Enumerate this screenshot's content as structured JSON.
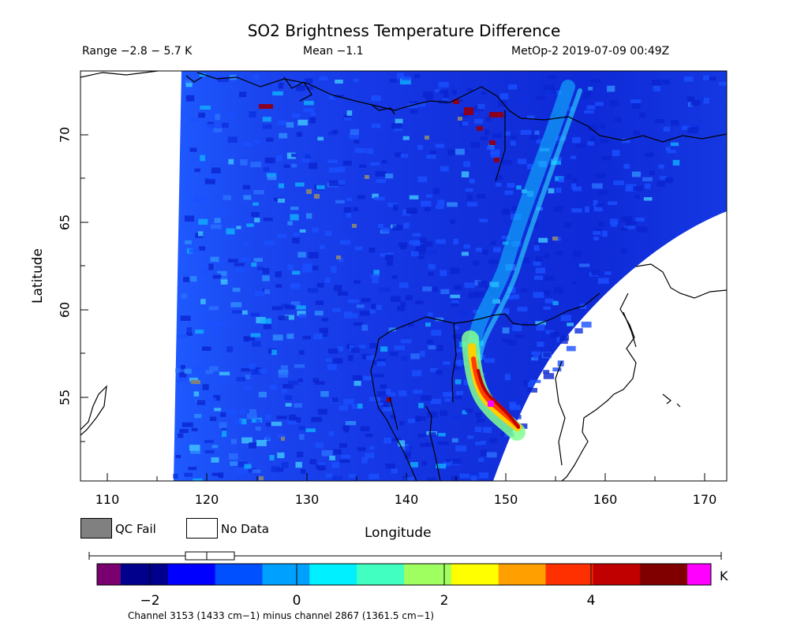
{
  "header": {
    "title": "SO2 Brightness Temperature Difference",
    "range": "Range −2.8 − 5.7 K",
    "mean": "Mean −1.1",
    "satellite_time": "MetOp-2 2019-07-09 00:49Z"
  },
  "axes": {
    "xlabel": "Longitude",
    "ylabel": "Latitude",
    "xticks": [
      "110",
      "120",
      "130",
      "140",
      "150",
      "160",
      "170"
    ],
    "yticks": [
      "70",
      "65",
      "60",
      "55"
    ]
  },
  "legend": {
    "qc_fail": "QC Fail",
    "no_data": "No Data",
    "qc_color": "#808080"
  },
  "colorbar": {
    "ticks": [
      "−2",
      "0",
      "2",
      "4"
    ],
    "unit": "K",
    "min": -2.8,
    "max": 5.7,
    "colors": [
      "#7a0070",
      "#00008c",
      "#0000ff",
      "#0050ff",
      "#00a0ff",
      "#00f0ff",
      "#40ffc0",
      "#a0ff60",
      "#ffff00",
      "#ffa000",
      "#ff3000",
      "#c00000",
      "#800000",
      "#ff00ff"
    ]
  },
  "footnote": "Channel 3153 (1433 cm−1) minus channel 2867 (1361.5 cm−1)"
}
